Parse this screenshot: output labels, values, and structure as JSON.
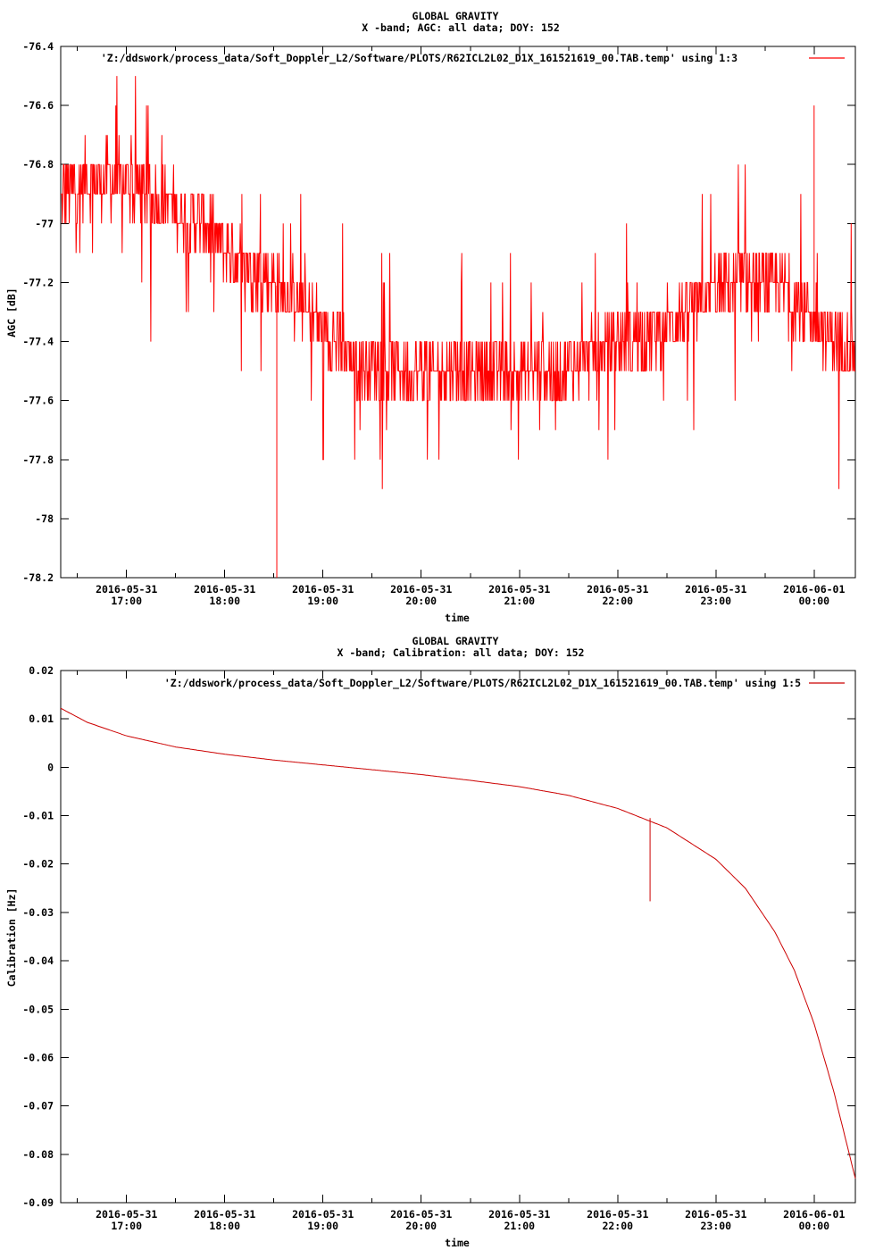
{
  "chart_data": [
    {
      "type": "line",
      "title": "GLOBAL GRAVITY",
      "subtitle": "X -band; AGC: all data; DOY: 152",
      "xlabel": "time",
      "ylabel": "AGC [dB]",
      "ylim": [
        -78.2,
        -76.4
      ],
      "yticks": [
        -76.4,
        -76.6,
        -76.8,
        -77,
        -77.2,
        -77.4,
        -77.6,
        -77.8,
        -78,
        -78.2
      ],
      "ytick_labels": [
        "-76.4",
        "-76.6",
        "-76.8",
        "-77",
        "-77.2",
        "-77.4",
        "-77.6",
        "-77.8",
        "-78",
        "-78.2"
      ],
      "xlim_hours": [
        16.33,
        24.42
      ],
      "xticks_hours": [
        17,
        18,
        19,
        20,
        21,
        22,
        23,
        24
      ],
      "xtick_dates": [
        "2016-05-31",
        "2016-05-31",
        "2016-05-31",
        "2016-05-31",
        "2016-05-31",
        "2016-05-31",
        "2016-05-31",
        "2016-06-01"
      ],
      "xtick_times": [
        "17:00",
        "18:00",
        "19:00",
        "20:00",
        "21:00",
        "22:00",
        "23:00",
        "00:00"
      ],
      "legend": "top-right",
      "series": [
        {
          "name": "'Z:/ddswork/process_data/Soft_Doppler_L2/Software/PLOTS/R62ICL2L02_D1X_161521619_00.TAB.temp' using 1:3",
          "color": "#ff0000",
          "x_hours": [
            16.33,
            16.6,
            16.9,
            17.2,
            17.5,
            17.8,
            18.1,
            18.4,
            18.7,
            19.0,
            19.3,
            19.6,
            19.9,
            20.2,
            20.5,
            20.8,
            21.1,
            21.4,
            21.7,
            22.0,
            22.3,
            22.6,
            22.9,
            23.2,
            23.5,
            23.8,
            24.1,
            24.42
          ],
          "values": [
            -76.9,
            -76.85,
            -76.85,
            -76.9,
            -76.95,
            -77.0,
            -77.12,
            -77.18,
            -77.25,
            -77.35,
            -77.45,
            -77.5,
            -77.5,
            -77.5,
            -77.5,
            -77.5,
            -77.5,
            -77.5,
            -77.45,
            -77.4,
            -77.38,
            -77.32,
            -77.25,
            -77.2,
            -77.2,
            -77.25,
            -77.35,
            -77.45
          ],
          "spike_min": {
            "x_hours": 18.53,
            "value": -78.2
          },
          "spike_max": {
            "x_hours": 24.0,
            "value": -76.6
          }
        }
      ]
    },
    {
      "type": "line",
      "title": "GLOBAL GRAVITY",
      "subtitle": "X -band; Calibration: all data; DOY: 152",
      "xlabel": "time",
      "ylabel": "Calibration [Hz]",
      "ylim": [
        -0.09,
        0.02
      ],
      "yticks": [
        0.02,
        0.01,
        0,
        -0.01,
        -0.02,
        -0.03,
        -0.04,
        -0.05,
        -0.06,
        -0.07,
        -0.08,
        -0.09
      ],
      "ytick_labels": [
        "0.02",
        "0.01",
        "0",
        "-0.01",
        "-0.02",
        "-0.03",
        "-0.04",
        "-0.05",
        "-0.06",
        "-0.07",
        "-0.08",
        "-0.09"
      ],
      "xlim_hours": [
        16.33,
        24.42
      ],
      "xticks_hours": [
        17,
        18,
        19,
        20,
        21,
        22,
        23,
        24
      ],
      "xtick_dates": [
        "2016-05-31",
        "2016-05-31",
        "2016-05-31",
        "2016-05-31",
        "2016-05-31",
        "2016-05-31",
        "2016-05-31",
        "2016-06-01"
      ],
      "xtick_times": [
        "17:00",
        "18:00",
        "19:00",
        "20:00",
        "21:00",
        "22:00",
        "23:00",
        "00:00"
      ],
      "legend": "top-right",
      "series": [
        {
          "name": "'Z:/ddswork/process_data/Soft_Doppler_L2/Software/PLOTS/R62ICL2L02_D1X_161521619_00.TAB.temp' using 1:5",
          "color": "#cc0000",
          "x_hours": [
            16.33,
            16.6,
            17.0,
            17.5,
            18.0,
            18.5,
            19.0,
            19.5,
            20.0,
            20.5,
            21.0,
            21.5,
            22.0,
            22.5,
            23.0,
            23.3,
            23.6,
            23.8,
            24.0,
            24.2,
            24.42
          ],
          "values": [
            0.0122,
            0.0093,
            0.0065,
            0.0042,
            0.0027,
            0.0015,
            0.0005,
            -0.0005,
            -0.0015,
            -0.0027,
            -0.004,
            -0.0058,
            -0.0085,
            -0.0125,
            -0.019,
            -0.025,
            -0.034,
            -0.042,
            -0.053,
            -0.067,
            -0.085
          ],
          "spike": {
            "x_hours": 22.33,
            "from": -0.0105,
            "to": -0.0277
          }
        }
      ]
    }
  ]
}
